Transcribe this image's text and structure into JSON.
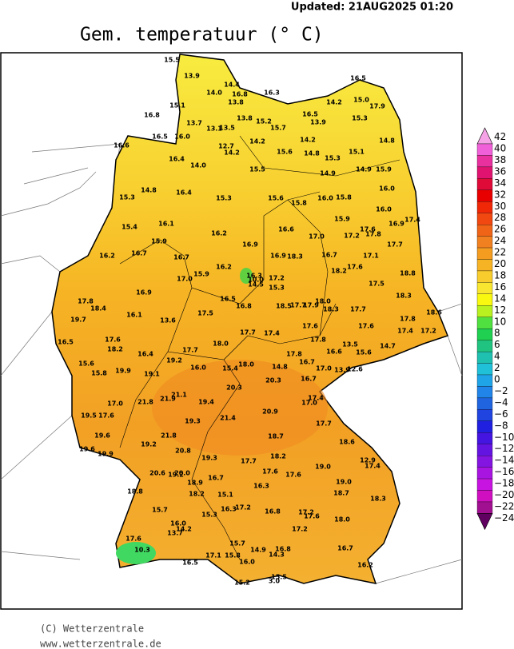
{
  "header": {
    "updated": "Updated: 21AUG2025 01:20",
    "title": "Gem. temperatuur (° C)"
  },
  "map": {
    "stations": [
      "15.5",
      "13.9",
      "14.4",
      "14.0",
      "16.8",
      "13.8",
      "15.1",
      "16.3",
      "16.5",
      "14.2",
      "15.0",
      "17.9",
      "16.8",
      "13.7",
      "13.8",
      "13.1",
      "13.5",
      "15.2",
      "15.7",
      "16.5",
      "13.9",
      "15.3",
      "14.8",
      "16.5",
      "16.0",
      "14.2",
      "16.6",
      "12.7",
      "14.2",
      "14.2",
      "15.6",
      "14.8",
      "15.1",
      "16.4",
      "14.0",
      "15.5",
      "15.3",
      "14.9",
      "14.9",
      "15.9",
      "15.3",
      "14.8",
      "16.4",
      "15.3",
      "15.6",
      "15.8",
      "16.0",
      "15.8",
      "16.0",
      "16.0",
      "15.9",
      "15.4",
      "16.1",
      "16.2",
      "16.6",
      "17.0",
      "17.2",
      "17.6",
      "17.8",
      "16.9",
      "17.4",
      "15.9",
      "16.9",
      "17.7",
      "16.2",
      "16.7",
      "16.7",
      "16.7",
      "16.9",
      "18.3",
      "17.1",
      "16.2",
      "17.6",
      "18.2",
      "16.3",
      "17.2",
      "17.0",
      "15.9",
      "10.0",
      "14.5",
      "15.3",
      "17.5",
      "18.8",
      "16.9",
      "17.8",
      "18.4",
      "16.5",
      "16.8",
      "18.5",
      "17.7",
      "17.9",
      "18.0",
      "18.3",
      "17.7",
      "18.3",
      "16.1",
      "13.6",
      "17.5",
      "19.7",
      "17.8",
      "18.6",
      "17.7",
      "17.4",
      "17.6",
      "17.2",
      "17.6",
      "17.4",
      "16.5",
      "17.6",
      "18.2",
      "17.7",
      "18.0",
      "17.8",
      "16.6",
      "13.5",
      "15.6",
      "14.7",
      "16.4",
      "15.6",
      "19.2",
      "16.0",
      "15.4",
      "18.0",
      "14.8",
      "17.8",
      "16.7",
      "17.0",
      "13.9",
      "12.6",
      "15.8",
      "19.9",
      "19.1",
      "16.7",
      "20.3",
      "20.3",
      "17.4",
      "17.0",
      "21.8",
      "21.9",
      "21.1",
      "19.4",
      "17.0",
      "20.9",
      "19.5",
      "17.6",
      "19.3",
      "21.4",
      "17.7",
      "19.6",
      "21.8",
      "18.7",
      "18.6",
      "19.2",
      "19.6",
      "19.9",
      "20.8",
      "19.3",
      "17.7",
      "18.2",
      "12.9",
      "17.4",
      "20.6",
      "19.2",
      "20.0",
      "16.7",
      "17.6",
      "17.6",
      "19.0",
      "18.9",
      "16.3",
      "19.0",
      "18.7",
      "18.8",
      "18.2",
      "15.1",
      "18.3",
      "15.7",
      "16.3",
      "17.2",
      "16.8",
      "17.2",
      "17.6",
      "18.0",
      "15.3",
      "16.0",
      "14.2",
      "13.7",
      "17.2",
      "17.6",
      "10.3",
      "15.7",
      "14.9",
      "16.8",
      "14.3",
      "16.7",
      "17.1",
      "15.8",
      "16.5",
      "16.0",
      "15.5",
      "3.0",
      "15.2",
      "16.2"
    ]
  },
  "colorbar": {
    "ticks": [
      {
        "value": 42,
        "label": "42",
        "color": "#f5a3e6"
      },
      {
        "value": 40,
        "label": "40",
        "color": "#f060d8"
      },
      {
        "value": 38,
        "label": "38",
        "color": "#e8309e"
      },
      {
        "value": 36,
        "label": "36",
        "color": "#e01470"
      },
      {
        "value": 34,
        "label": "34",
        "color": "#e00a38"
      },
      {
        "value": 32,
        "label": "32",
        "color": "#e80000"
      },
      {
        "value": 30,
        "label": "30",
        "color": "#f02808"
      },
      {
        "value": 28,
        "label": "28",
        "color": "#f04810"
      },
      {
        "value": 26,
        "label": "26",
        "color": "#f06418"
      },
      {
        "value": 24,
        "label": "24",
        "color": "#f08020"
      },
      {
        "value": 22,
        "label": "22",
        "color": "#f49c20"
      },
      {
        "value": 20,
        "label": "20",
        "color": "#f6b424"
      },
      {
        "value": 18,
        "label": "18",
        "color": "#f8cc2c"
      },
      {
        "value": 16,
        "label": "16",
        "color": "#f8e630"
      },
      {
        "value": 14,
        "label": "14",
        "color": "#f8f810"
      },
      {
        "value": 12,
        "label": "12",
        "color": "#b8f020"
      },
      {
        "value": 10,
        "label": "10",
        "color": "#50e040"
      },
      {
        "value": 8,
        "label": "8",
        "color": "#20d050"
      },
      {
        "value": 6,
        "label": "6",
        "color": "#20c480"
      },
      {
        "value": 4,
        "label": "4",
        "color": "#20c0b0"
      },
      {
        "value": 2,
        "label": "2",
        "color": "#20c0d8"
      },
      {
        "value": 0,
        "label": "0",
        "color": "#20a4e8"
      },
      {
        "value": -2,
        "label": "−2",
        "color": "#2084e8"
      },
      {
        "value": -4,
        "label": "−4",
        "color": "#2064e0"
      },
      {
        "value": -6,
        "label": "−6",
        "color": "#2044e0"
      },
      {
        "value": -8,
        "label": "−8",
        "color": "#2020e0"
      },
      {
        "value": -10,
        "label": "−10",
        "color": "#4414e0"
      },
      {
        "value": -12,
        "label": "−12",
        "color": "#6414e0"
      },
      {
        "value": -14,
        "label": "−14",
        "color": "#8414e0"
      },
      {
        "value": -16,
        "label": "−16",
        "color": "#a814e0"
      },
      {
        "value": -18,
        "label": "−18",
        "color": "#c814e0"
      },
      {
        "value": -20,
        "label": "−20",
        "color": "#d010c0"
      },
      {
        "value": -22,
        "label": "−22",
        "color": "#a01090"
      },
      {
        "value": -24,
        "label": "−24",
        "color": "#600060"
      }
    ]
  },
  "footer": {
    "copyright": "(C) Wetterzentrale",
    "url": "www.wetterzentrale.de"
  }
}
